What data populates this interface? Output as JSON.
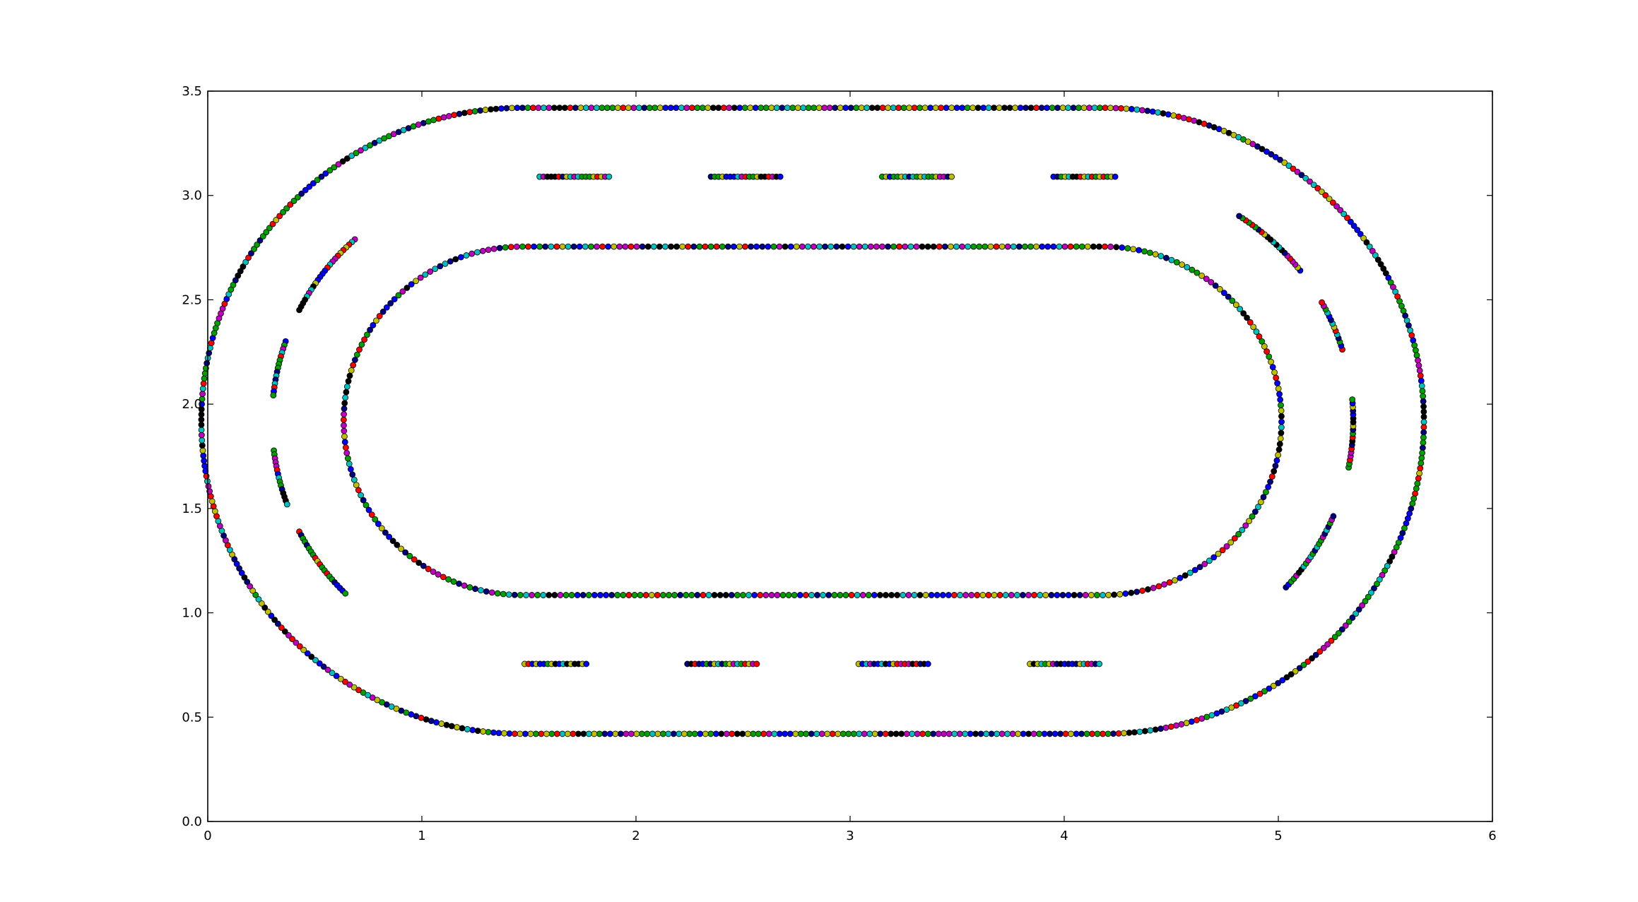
{
  "chart_data": {
    "type": "scatter",
    "title": "",
    "xlabel": "",
    "ylabel": "",
    "xlim": [
      0,
      6
    ],
    "ylim": [
      0,
      3.5
    ],
    "grid": false,
    "xticks": [
      "0",
      "1",
      "2",
      "3",
      "4",
      "5",
      "6"
    ],
    "yticks": [
      "0.0",
      "0.5",
      "1.0",
      "1.5",
      "2.0",
      "2.5",
      "3.0",
      "3.5"
    ],
    "marker_palette": [
      "#000080",
      "#0000ff",
      "#ff0000",
      "#00a000",
      "#00bfbf",
      "#bf00bf",
      "#bfbf00",
      "#000000"
    ],
    "series": [
      {
        "id": "outer-boundary",
        "shape": "stadium",
        "x_straight": [
          1.47,
          4.18
        ],
        "center_y": 1.92,
        "radius": 1.5,
        "points": 600
      },
      {
        "id": "inner-boundary",
        "shape": "stadium",
        "x_straight": [
          1.47,
          4.18
        ],
        "center_y": 1.92,
        "radius": 0.835,
        "points": 400
      },
      {
        "id": "centerline-dashes",
        "shape": "dashes",
        "top_y": 3.09,
        "bottom_y": 0.755,
        "top_dashes": [
          [
            1.55,
            1.88
          ],
          [
            2.35,
            2.68
          ],
          [
            3.15,
            3.48
          ],
          [
            3.95,
            4.24
          ]
        ],
        "bottom_dashes": [
          [
            1.48,
            1.77
          ],
          [
            2.24,
            2.57
          ],
          [
            3.04,
            3.37
          ],
          [
            3.84,
            4.17
          ]
        ],
        "left_arcs_x_center": 1.47,
        "right_arcs_x_center": 4.18,
        "arc_radius": 1.17,
        "arc_center_y": 1.92,
        "left_arcs_deg": [
          [
            132,
            153
          ],
          [
            161,
            174
          ],
          [
            187,
            200
          ],
          [
            207,
            225
          ]
        ],
        "right_arcs_deg": [
          [
            -43,
            -23
          ],
          [
            -11,
            5
          ],
          [
            17,
            29
          ],
          [
            38,
            57
          ]
        ]
      }
    ]
  }
}
